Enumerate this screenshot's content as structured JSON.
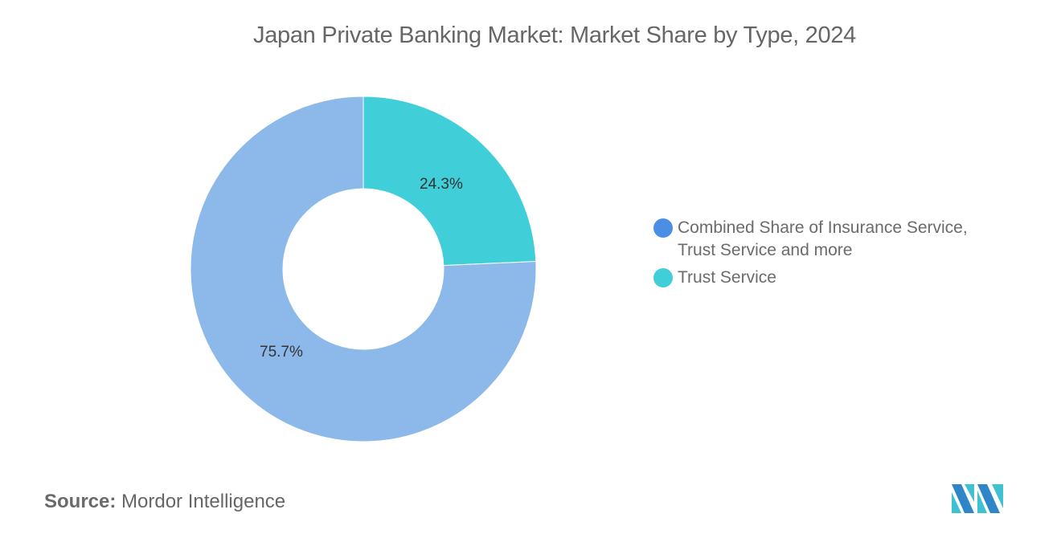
{
  "chart_data": {
    "type": "pie",
    "subtype": "donut",
    "title": "Japan Private Banking Market: Market Share by Type, 2024",
    "categories": [
      "Trust Service",
      "Combined Share of Insurance Service, Trust Service and more"
    ],
    "values": [
      24.3,
      75.7
    ],
    "unit": "%",
    "data_labels": [
      "24.3%",
      "75.7%"
    ],
    "colors": [
      "#40CED9",
      "#8DB8EA"
    ],
    "legend": {
      "position": "right",
      "entries": [
        {
          "label": "Combined Share of Insurance Service, Trust Service and more",
          "color": "#4A8EE6"
        },
        {
          "label": "Trust Service",
          "color": "#40CED9"
        }
      ]
    }
  },
  "header": {
    "title": "Japan Private Banking Market: Market Share by Type, 2024"
  },
  "slices": [
    {
      "label": "24.3%",
      "color": "#40CED9"
    },
    {
      "label": "75.7%",
      "color": "#8DB8EA"
    }
  ],
  "legend": {
    "items": [
      {
        "label": "Combined Share of Insurance Service, Trust Service and more",
        "color": "#4A8EE6"
      },
      {
        "label": "Trust Service",
        "color": "#40CED9"
      }
    ]
  },
  "footer": {
    "source_label": "Source:",
    "source_value": "Mordor Intelligence",
    "logo_icon": "mordor-intelligence-logo-icon"
  }
}
